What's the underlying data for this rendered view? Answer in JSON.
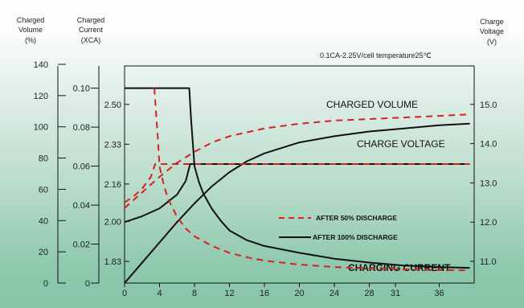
{
  "chart_data": {
    "type": "line",
    "subtitle": "0.1CA-2.25V/cell   temperature25℃",
    "xlabel": "",
    "x_ticks": [
      "0",
      "4",
      "8",
      "12",
      "16",
      "20",
      "24",
      "28",
      "31",
      "36"
    ],
    "axes": {
      "volume": {
        "title": [
          "Charged",
          "Volume"
        ],
        "unit": "(%)",
        "ticks": [
          "0",
          "20",
          "40",
          "60",
          "80",
          "100",
          "120",
          "140"
        ],
        "range": [
          0,
          140
        ]
      },
      "current": {
        "title": [
          "Charged",
          "Current"
        ],
        "unit": "(XCA)",
        "ticks": [
          "0",
          "0.02",
          "0.04",
          "0.06",
          "0.08",
          "0.10"
        ],
        "range": [
          0,
          0.1
        ]
      },
      "cell_voltage": {
        "ticks": [
          "1.83",
          "2.00",
          "2.16",
          "2.33",
          "2.50"
        ],
        "range": [
          1.83,
          2.5
        ]
      },
      "voltage": {
        "title": [
          "Charge",
          "Voltage"
        ],
        "unit": "(V)",
        "ticks": [
          "11.0",
          "12.0",
          "13.0",
          "14.0",
          "15.0"
        ],
        "range": [
          11.0,
          15.0
        ]
      }
    },
    "annotations": {
      "charged_volume": "CHARGED VOLUME",
      "charge_voltage": "CHARGE VOLTAGE",
      "charging_current": "CHARGING CURRENT"
    },
    "legend": [
      {
        "label": "AFTER 50% DISCHARGE",
        "style": "dashed",
        "color": "#d6211f"
      },
      {
        "label": "AFTER 100% DISCHARGE",
        "style": "solid",
        "color": "#111111"
      }
    ],
    "series": [
      {
        "name": "AFTER 100% DISCHARGE",
        "quantity": "charged_volume",
        "axis": "volume",
        "x": [
          0,
          2,
          4,
          6,
          8,
          10,
          12,
          14,
          16,
          20,
          24,
          28,
          32,
          36,
          39.5
        ],
        "values": [
          0,
          13,
          26,
          39,
          51,
          62,
          71,
          78,
          83,
          90,
          94,
          97,
          99,
          101,
          102
        ]
      },
      {
        "name": "AFTER 50% DISCHARGE",
        "quantity": "charged_volume",
        "axis": "volume",
        "x": [
          0,
          2,
          4,
          6,
          8,
          10,
          12,
          16,
          20,
          24,
          28,
          32,
          36,
          39.5
        ],
        "values": [
          48,
          58,
          68,
          77,
          84,
          90,
          94,
          99,
          102,
          104,
          105,
          106,
          107,
          108
        ]
      },
      {
        "name": "AFTER 100% DISCHARGE",
        "quantity": "charge_voltage",
        "axis": "voltage",
        "x": [
          0,
          2,
          4,
          6,
          7,
          7.5,
          8,
          12,
          16,
          20,
          24,
          28,
          32,
          36,
          39.5
        ],
        "values": [
          12.0,
          12.15,
          12.35,
          12.7,
          13.05,
          13.48,
          13.48,
          13.48,
          13.48,
          13.48,
          13.48,
          13.48,
          13.48,
          13.48,
          13.48
        ]
      },
      {
        "name": "AFTER 50% DISCHARGE",
        "quantity": "charge_voltage",
        "axis": "voltage",
        "x": [
          0,
          1,
          2,
          3,
          3.5,
          4,
          8,
          12,
          16,
          20,
          24,
          28,
          32,
          36,
          39.5
        ],
        "values": [
          12.5,
          12.65,
          12.85,
          13.15,
          13.48,
          13.48,
          13.48,
          13.48,
          13.48,
          13.48,
          13.48,
          13.48,
          13.48,
          13.48,
          13.48
        ]
      },
      {
        "name": "AFTER 100% DISCHARGE",
        "quantity": "charging_current",
        "axis": "current",
        "x": [
          0,
          2,
          4,
          6,
          7.4,
          7.6,
          8,
          8.5,
          9,
          10,
          11,
          12,
          14,
          16,
          20,
          24,
          28,
          32,
          36,
          39.5
        ],
        "values": [
          0.1,
          0.1,
          0.1,
          0.1,
          0.1,
          0.085,
          0.06,
          0.052,
          0.046,
          0.038,
          0.032,
          0.027,
          0.022,
          0.019,
          0.0155,
          0.0125,
          0.0105,
          0.009,
          0.0082,
          0.0078
        ]
      },
      {
        "name": "AFTER 50% DISCHARGE",
        "quantity": "charging_current",
        "axis": "current",
        "x": [
          3.4,
          3.8,
          4,
          4.5,
          5,
          6,
          7,
          8,
          10,
          12,
          14,
          16,
          20,
          24,
          28,
          32,
          36,
          39.5
        ],
        "values": [
          0.1,
          0.075,
          0.06,
          0.05,
          0.043,
          0.034,
          0.028,
          0.024,
          0.019,
          0.0155,
          0.0132,
          0.0115,
          0.0095,
          0.0082,
          0.0075,
          0.007,
          0.0067,
          0.0065
        ]
      }
    ]
  }
}
